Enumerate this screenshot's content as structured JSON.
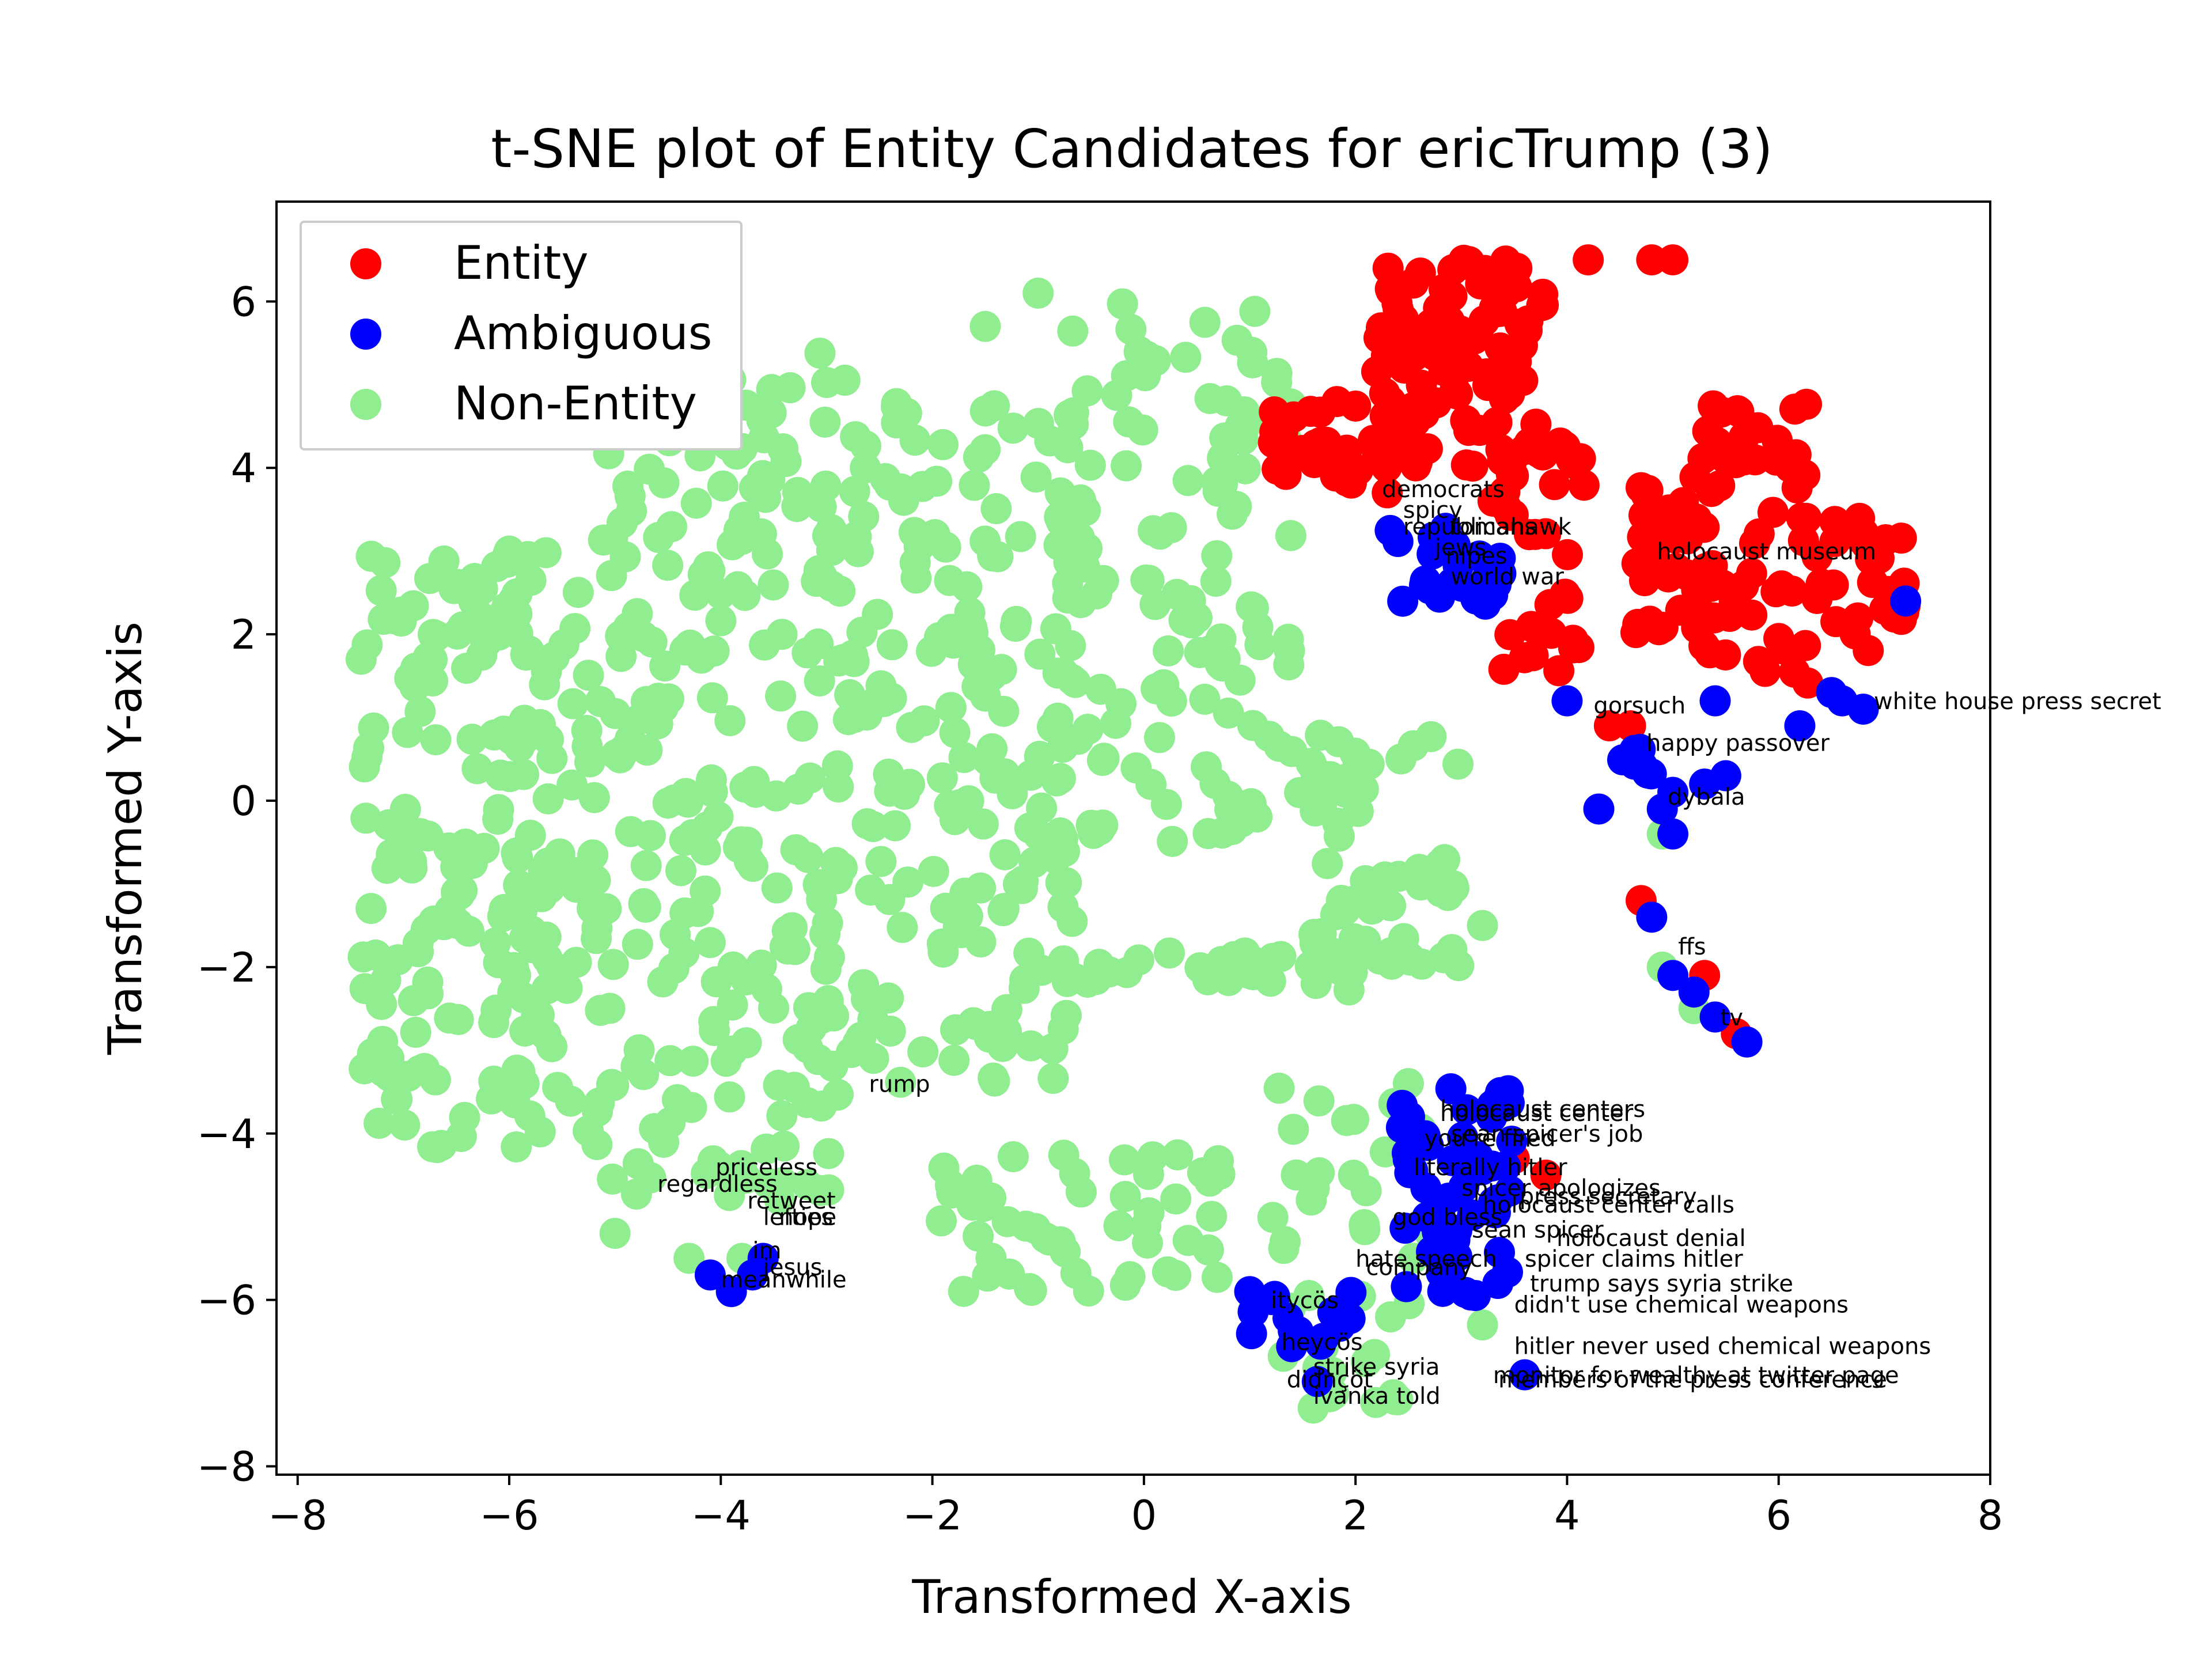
{
  "chart_data": {
    "type": "scatter",
    "title": "t-SNE plot of Entity Candidates for ericTrump (3)",
    "xlabel": "Transformed X-axis",
    "ylabel": "Transformed Y-axis",
    "xlim": [
      -8.2,
      8
    ],
    "ylim": [
      -8.1,
      7.2
    ],
    "xticks": [
      -8,
      -6,
      -4,
      -2,
      0,
      2,
      4,
      6,
      8
    ],
    "yticks": [
      -8,
      -6,
      -4,
      -2,
      0,
      2,
      4,
      6
    ],
    "tick_labels_x": [
      "−8",
      "−6",
      "−4",
      "−2",
      "0",
      "2",
      "4",
      "6",
      "8"
    ],
    "tick_labels_y": [
      "−8",
      "−6",
      "−4",
      "−2",
      "0",
      "2",
      "4",
      "6"
    ],
    "grid": false,
    "legend": {
      "position": "top-left",
      "entries": [
        {
          "label": "Entity",
          "color": "#ff0000"
        },
        {
          "label": "Ambiguous",
          "color": "#0000ff"
        },
        {
          "label": "Non-Entity",
          "color": "#90ee90"
        }
      ]
    },
    "series": [
      {
        "name": "Non-Entity",
        "color": "#90ee90",
        "regions": [
          {
            "x": [
              -7.4,
              -5.2
            ],
            "y": [
              -4.2,
              3.0
            ],
            "n": 200
          },
          {
            "x": [
              -5.2,
              -2.8
            ],
            "y": [
              -4.8,
              5.4
            ],
            "n": 240
          },
          {
            "x": [
              -2.8,
              -0.6
            ],
            "y": [
              -3.4,
              5.0
            ],
            "n": 180
          },
          {
            "x": [
              -0.8,
              1.4
            ],
            "y": [
              -0.5,
              6.0
            ],
            "n": 120
          },
          {
            "x": [
              1.4,
              3.0
            ],
            "y": [
              -2.0,
              0.8
            ],
            "n": 60
          },
          {
            "x": [
              -2.0,
              0.8
            ],
            "y": [
              -5.9,
              -4.2
            ],
            "n": 50
          },
          {
            "x": [
              1.2,
              2.8
            ],
            "y": [
              -7.3,
              -3.4
            ],
            "n": 40
          },
          {
            "x": [
              -1.2,
              2.6
            ],
            "y": [
              -2.3,
              -1.8
            ],
            "n": 35
          }
        ],
        "points": [
          [
            -1.5,
            5.7
          ],
          [
            -4.0,
            4.4
          ],
          [
            -1.0,
            6.1
          ],
          [
            -6.0,
            3.0
          ],
          [
            -7.4,
            1.7
          ],
          [
            -5.0,
            -5.2
          ],
          [
            2.5,
            -3.4
          ],
          [
            4.9,
            -0.4
          ],
          [
            4.9,
            -2.0
          ],
          [
            5.2,
            -2.5
          ],
          [
            3.2,
            -6.3
          ],
          [
            1.6,
            -7.3
          ],
          [
            2.4,
            -7.2
          ],
          [
            -4.3,
            -5.5
          ],
          [
            -3.8,
            -5.5
          ],
          [
            2.0,
            -1.2
          ],
          [
            3.2,
            -1.5
          ]
        ]
      },
      {
        "name": "Entity",
        "color": "#ff0000",
        "regions": [
          {
            "x": [
              1.2,
              2.6
            ],
            "y": [
              3.8,
              4.8
            ],
            "n": 40
          },
          {
            "x": [
              2.2,
              3.8
            ],
            "y": [
              4.0,
              6.5
            ],
            "n": 110
          },
          {
            "x": [
              3.4,
              4.2
            ],
            "y": [
              1.4,
              4.3
            ],
            "n": 30
          },
          {
            "x": [
              4.6,
              5.4
            ],
            "y": [
              2.0,
              3.8
            ],
            "n": 40
          },
          {
            "x": [
              5.2,
              6.3
            ],
            "y": [
              1.4,
              4.8
            ],
            "n": 50
          },
          {
            "x": [
              6.3,
              7.2
            ],
            "y": [
              1.8,
              3.4
            ],
            "n": 30
          }
        ],
        "points": [
          [
            4.2,
            6.5
          ],
          [
            4.8,
            6.5
          ],
          [
            5.0,
            6.5
          ],
          [
            4.6,
            0.9
          ],
          [
            4.4,
            0.9
          ],
          [
            4.7,
            -1.2
          ],
          [
            5.3,
            -2.1
          ],
          [
            5.6,
            -2.8
          ],
          [
            3.5,
            -4.3
          ],
          [
            3.8,
            -4.5
          ],
          [
            3.3,
            3.6
          ],
          [
            3.7,
            3.2
          ],
          [
            2.3,
            3.7
          ]
        ]
      },
      {
        "name": "Ambiguous",
        "color": "#0000ff",
        "regions": [
          {
            "x": [
              2.3,
              3.4
            ],
            "y": [
              2.3,
              3.4
            ],
            "n": 25
          },
          {
            "x": [
              2.4,
              3.5
            ],
            "y": [
              -6.2,
              -3.4
            ],
            "n": 55
          },
          {
            "x": [
              1.0,
              2.0
            ],
            "y": [
              -7.0,
              -5.8
            ],
            "n": 15
          },
          {
            "x": [
              4.3,
              4.8
            ],
            "y": [
              0.3,
              0.7
            ],
            "n": 8
          }
        ],
        "points": [
          [
            4.0,
            1.2
          ],
          [
            5.4,
            1.2
          ],
          [
            6.5,
            1.3
          ],
          [
            6.6,
            1.2
          ],
          [
            6.8,
            1.1
          ],
          [
            6.2,
            0.9
          ],
          [
            7.2,
            2.4
          ],
          [
            4.3,
            -0.1
          ],
          [
            4.9,
            -0.1
          ],
          [
            5.0,
            0.1
          ],
          [
            5.3,
            0.2
          ],
          [
            5.5,
            0.3
          ],
          [
            5.0,
            -0.4
          ],
          [
            4.8,
            -1.4
          ],
          [
            5.0,
            -2.1
          ],
          [
            5.2,
            -2.3
          ],
          [
            5.4,
            -2.6
          ],
          [
            5.7,
            -2.9
          ],
          [
            1.0,
            -5.9
          ],
          [
            -3.9,
            -5.9
          ],
          [
            -4.1,
            -5.7
          ],
          [
            -3.7,
            -5.7
          ],
          [
            -3.6,
            -5.5
          ],
          [
            3.6,
            -6.9
          ]
        ]
      }
    ],
    "annotations": [
      {
        "text": "democrats",
        "x": 2.25,
        "y": 3.65
      },
      {
        "text": "spicy",
        "x": 2.45,
        "y": 3.4
      },
      {
        "text": "republicans",
        "x": 2.45,
        "y": 3.2
      },
      {
        "text": "tomahawk",
        "x": 2.9,
        "y": 3.2
      },
      {
        "text": "jews",
        "x": 2.75,
        "y": 2.95
      },
      {
        "text": "nipes",
        "x": 2.85,
        "y": 2.85
      },
      {
        "text": "world war",
        "x": 2.9,
        "y": 2.6
      },
      {
        "text": "holocaust museum",
        "x": 4.85,
        "y": 2.9
      },
      {
        "text": "gorsuch",
        "x": 4.25,
        "y": 1.05
      },
      {
        "text": "white house press secret",
        "x": 6.9,
        "y": 1.1
      },
      {
        "text": "happy passover",
        "x": 4.75,
        "y": 0.6
      },
      {
        "text": "dybala",
        "x": 4.95,
        "y": -0.05
      },
      {
        "text": "ffs",
        "x": 5.05,
        "y": -1.85
      },
      {
        "text": "tv",
        "x": 5.45,
        "y": -2.7
      },
      {
        "text": "rump",
        "x": -2.6,
        "y": -3.5
      },
      {
        "text": "priceless",
        "x": -4.05,
        "y": -4.5
      },
      {
        "text": "regardless",
        "x": -4.6,
        "y": -4.7
      },
      {
        "text": "retweet",
        "x": -3.75,
        "y": -4.9
      },
      {
        "text": "lefties",
        "x": -3.6,
        "y": -5.1
      },
      {
        "text": "nope",
        "x": -3.45,
        "y": -5.1
      },
      {
        "text": "im",
        "x": -3.7,
        "y": -5.5
      },
      {
        "text": "jesus",
        "x": -3.6,
        "y": -5.7
      },
      {
        "text": "meanwhile",
        "x": -4.0,
        "y": -5.85
      },
      {
        "text": "holocaust centers",
        "x": 2.8,
        "y": -3.8
      },
      {
        "text": "holocaust center",
        "x": 2.8,
        "y": -3.85
      },
      {
        "text": "sean spicer's job",
        "x": 2.9,
        "y": -4.1
      },
      {
        "text": "you're fired",
        "x": 2.65,
        "y": -4.15
      },
      {
        "text": "literally hitler",
        "x": 2.55,
        "y": -4.5
      },
      {
        "text": "spicer apologizes",
        "x": 3.0,
        "y": -4.75
      },
      {
        "text": "press secretary",
        "x": 3.55,
        "y": -4.85
      },
      {
        "text": "holocaust center calls",
        "x": 3.2,
        "y": -4.95
      },
      {
        "text": "god bless",
        "x": 2.35,
        "y": -5.1
      },
      {
        "text": "sean spicer",
        "x": 3.1,
        "y": -5.25
      },
      {
        "text": "holocaust denial",
        "x": 3.9,
        "y": -5.35
      },
      {
        "text": "spicer claims hitler",
        "x": 3.6,
        "y": -5.6
      },
      {
        "text": "hate speech",
        "x": 2.0,
        "y": -5.6
      },
      {
        "text": "company",
        "x": 2.1,
        "y": -5.7
      },
      {
        "text": "trump says syria strike",
        "x": 3.65,
        "y": -5.9
      },
      {
        "text": "didn't use chemical weapons",
        "x": 3.5,
        "y": -6.15
      },
      {
        "text": "itycös",
        "x": 1.2,
        "y": -6.1
      },
      {
        "text": "hitler never used chemical weapons",
        "x": 3.5,
        "y": -6.65
      },
      {
        "text": "heycös",
        "x": 1.3,
        "y": -6.6
      },
      {
        "text": "strike syria",
        "x": 1.6,
        "y": -6.9
      },
      {
        "text": "didnçöt",
        "x": 1.35,
        "y": -7.05
      },
      {
        "text": "ivanka told",
        "x": 1.6,
        "y": -7.25
      },
      {
        "text": "monitor for wealthy at twitter page",
        "x": 3.3,
        "y": -7.0
      },
      {
        "text": "members of the press conference",
        "x": 3.35,
        "y": -7.05
      }
    ]
  }
}
